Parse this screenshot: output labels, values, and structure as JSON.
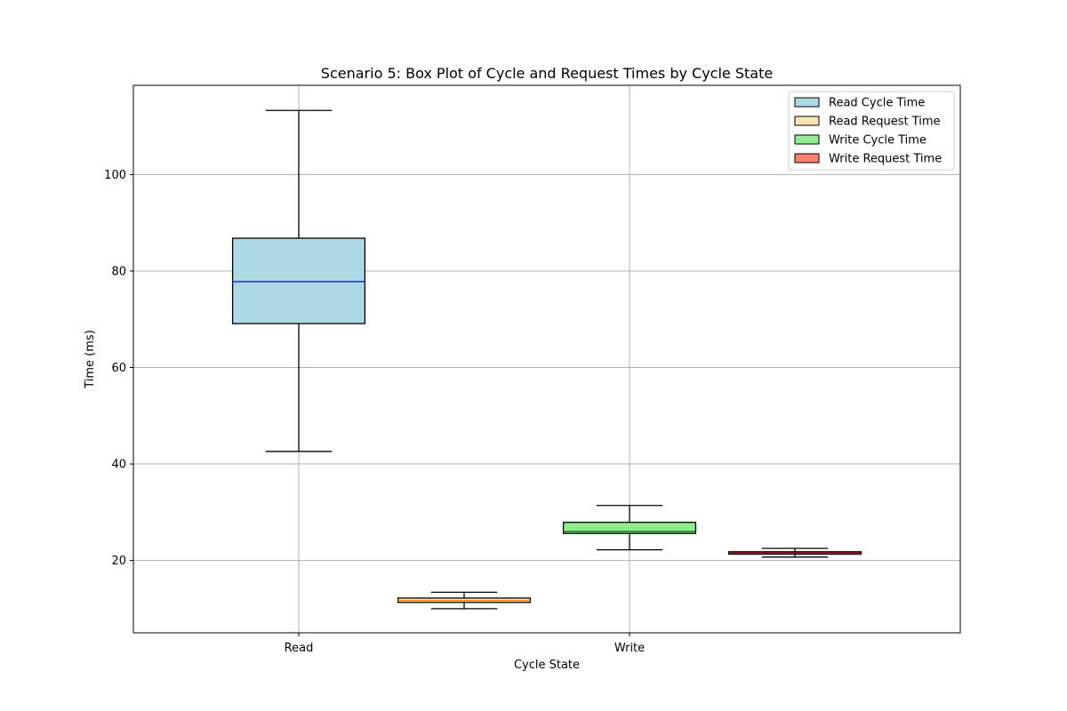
{
  "chart_data": {
    "type": "box",
    "title": "Scenario 5: Box Plot of Cycle and Request Times by Cycle State",
    "xlabel": "Cycle State",
    "ylabel": "Time (ms)",
    "categories": [
      "Read",
      "Write"
    ],
    "ylim": [
      5,
      118.5
    ],
    "yticks": [
      20,
      40,
      60,
      80,
      100
    ],
    "xlim": [
      0.5,
      3.0
    ],
    "grid": true,
    "legend_position": "top-right",
    "series": [
      {
        "name": "Read Cycle Time",
        "position": 1.0,
        "color": "#add8e6",
        "median_color": "#0000ff",
        "whisker_low": 42.6,
        "q1": 69.1,
        "median": 77.8,
        "q3": 86.8,
        "whisker_high": 113.3
      },
      {
        "name": "Read Request Time",
        "position": 1.5,
        "color": "#ffe4b5",
        "median_color": "#ff7f0e",
        "whisker_low": 10.0,
        "q1": 11.3,
        "median": 11.7,
        "q3": 12.2,
        "whisker_high": 13.4
      },
      {
        "name": "Write Cycle Time",
        "position": 2.0,
        "color": "#90ee90",
        "median_color": "#006400",
        "whisker_low": 22.2,
        "q1": 25.6,
        "median": 26.0,
        "q3": 27.9,
        "whisker_high": 31.4
      },
      {
        "name": "Write Request Time",
        "position": 2.5,
        "color": "#fa8072",
        "median_color": "#8b0000",
        "whisker_low": 20.7,
        "q1": 21.3,
        "median": 21.6,
        "q3": 21.8,
        "whisker_high": 22.5
      }
    ]
  }
}
